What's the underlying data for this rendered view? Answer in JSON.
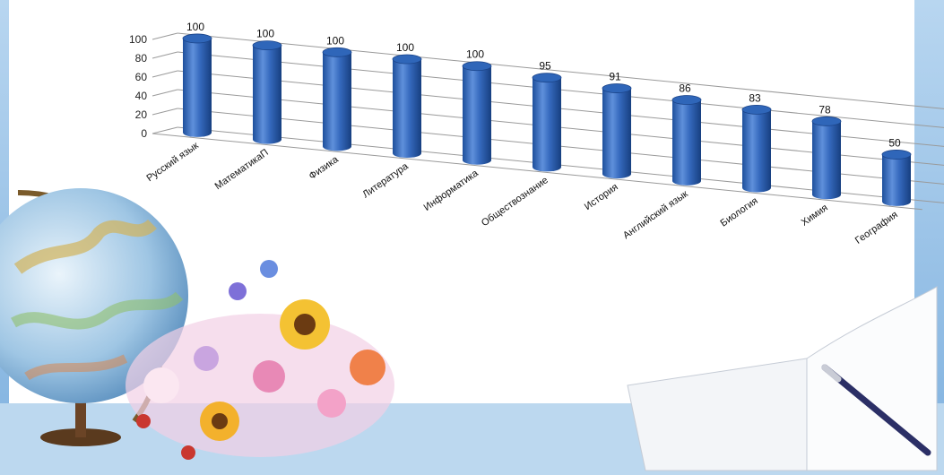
{
  "colors": {
    "frame": "#9cc3e8",
    "panel": "#ffffff",
    "bar": "#2f66b9",
    "bar_dark": "#1b4489",
    "bar_light": "#6f9ae0"
  },
  "chart_data": {
    "type": "bar",
    "categories": [
      "Русский язык",
      "МатематикаП",
      "Физика",
      "Литература",
      "Информатика",
      "Обществознание",
      "История",
      "Английский язык",
      "Биология",
      "Химия",
      "География"
    ],
    "values": [
      100,
      100,
      100,
      100,
      100,
      95,
      91,
      86,
      83,
      78,
      50
    ],
    "ylim": [
      0,
      100
    ],
    "yticks": [
      "0",
      "20",
      "40",
      "60",
      "80",
      "100"
    ],
    "grid": true,
    "legend": "none"
  }
}
